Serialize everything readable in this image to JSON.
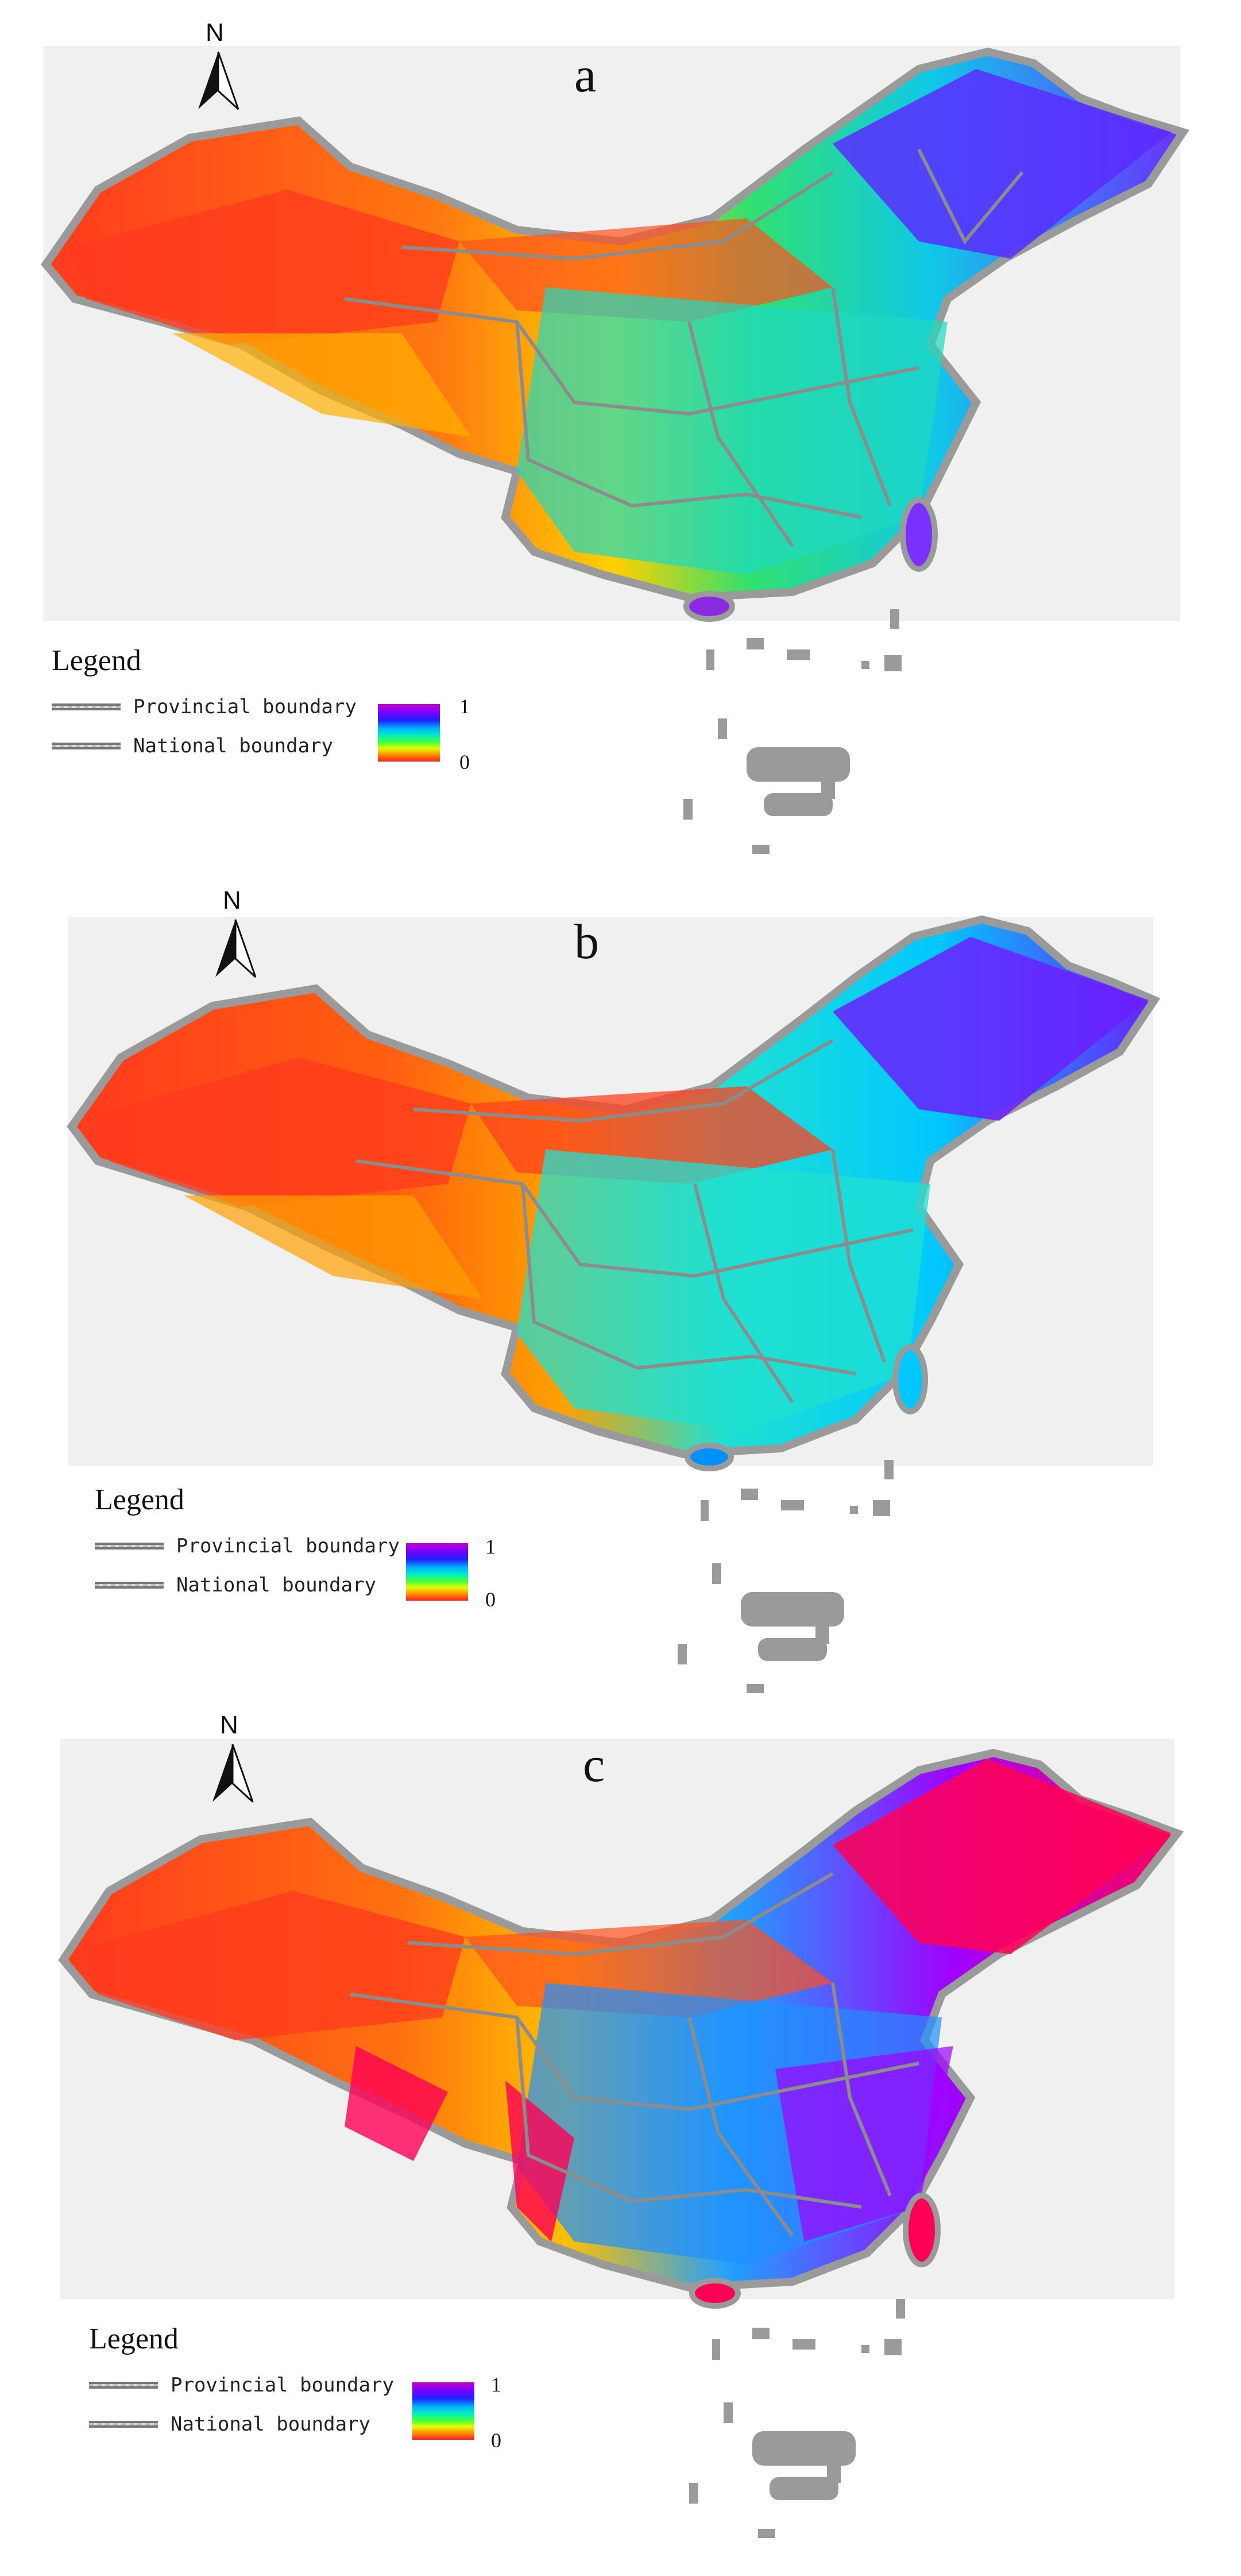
{
  "north_label": "N",
  "panels": [
    {
      "label": "a",
      "colors": {
        "north": "#8a2be2",
        "northeast": "#3a3aff",
        "center": "#00d8c0",
        "west": "#ff3a1e",
        "south": "#2fd26a",
        "tibet": "#ffb000"
      }
    },
    {
      "label": "b",
      "colors": {
        "north": "#ff4020",
        "northeast": "#6a20ff",
        "center": "#20e0d0",
        "west": "#ff3a1e",
        "south": "#00c8ff",
        "tibet": "#ffa000"
      }
    },
    {
      "label": "c",
      "colors": {
        "north": "#ff5020",
        "northeast": "#ff0055",
        "center": "#2090ff",
        "west": "#ff3a1e",
        "south": "#a000ff",
        "tibet": "#ffa000"
      }
    }
  ],
  "legend": {
    "title": "Legend",
    "provincial": "Provincial boundary",
    "national": "National boundary",
    "max": "1",
    "min": "0"
  }
}
